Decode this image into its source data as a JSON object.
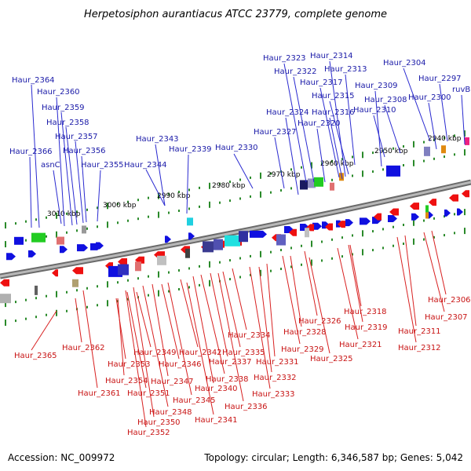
{
  "title": "Herpetosiphon aurantiacus ATCC 23779, complete genome",
  "footer": {
    "accession": "Accession: NC_009972",
    "topology": "Topology: circular; Length: 6,346,587 bp; Genes: 5,042"
  },
  "colors": {
    "forward": "#1010e0",
    "reverse": "#ee1010",
    "backbone": "#8a8a8a",
    "tick": "#2a8a2a",
    "label_forward": "#1a1aa8",
    "label_reverse": "#c81414"
  },
  "scale_ticks": [
    "3010 kbp",
    "3000 kbp",
    "2990 kbp",
    "2980 kbp",
    "2970 kbp",
    "2960 kbp",
    "2950 kbp",
    "2940 kbp"
  ],
  "forward_genes": [
    "Haur_2364",
    "Haur_2360",
    "Haur_2359",
    "Haur_2358",
    "Haur_2357",
    "Haur_2366",
    "asnC",
    "Haur_2356",
    "Haur_2355",
    "Haur_2343",
    "Haur_2339",
    "Haur_2344",
    "Haur_2330",
    "Haur_2323",
    "Haur_2314",
    "Haur_2322",
    "Haur_2313",
    "Haur_2304",
    "Haur_2317",
    "Haur_2297",
    "Haur_2309",
    "ruvB",
    "Haur_2315",
    "Haur_2308",
    "Haur_2300",
    "Haur_2324",
    "Haur_2316",
    "Haur_2310",
    "Haur_2327",
    "Haur_2320"
  ],
  "reverse_genes": [
    "Haur_2365",
    "Haur_2362",
    "Haur_2361",
    "Haur_2353",
    "Haur_2354",
    "Haur_2351",
    "Haur_2349",
    "Haur_2350",
    "Haur_2352",
    "Haur_2348",
    "Haur_2347",
    "Haur_2346",
    "Haur_2345",
    "Haur_2342",
    "Haur_2341",
    "Haur_2340",
    "Haur_2338",
    "Haur_2337",
    "Haur_2336",
    "Haur_2335",
    "Haur_2334",
    "Haur_2333",
    "Haur_2332",
    "Haur_2331",
    "Haur_2329",
    "Haur_2328",
    "Haur_2326",
    "Haur_2325",
    "Haur_2321",
    "Haur_2319",
    "Haur_2318",
    "Haur_2312",
    "Haur_2311",
    "Haur_2307",
    "Haur_2306"
  ]
}
